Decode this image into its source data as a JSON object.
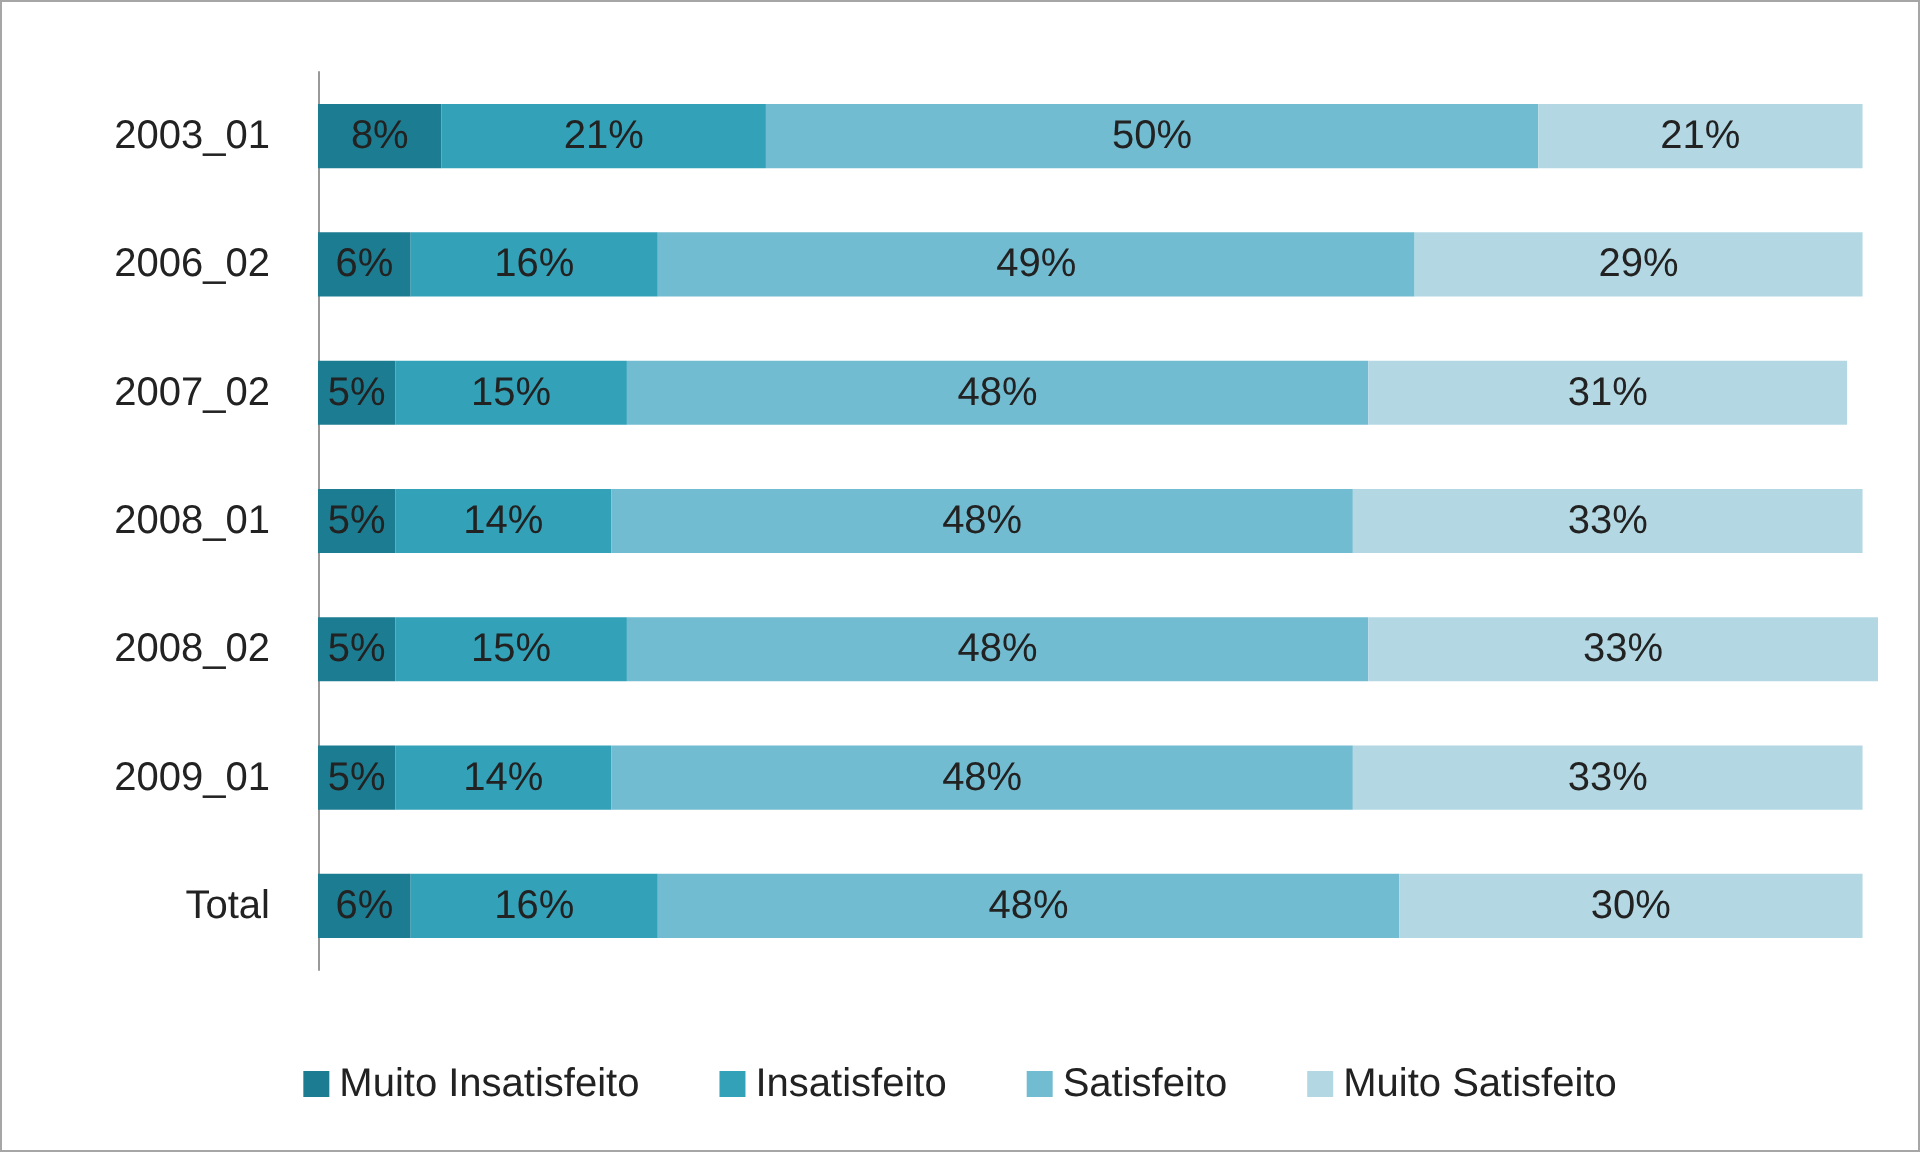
{
  "chart_data": {
    "type": "bar",
    "orientation": "horizontal",
    "stacked": true,
    "legend": "bottom",
    "xlim": [
      0,
      101
    ],
    "categories": [
      "2003_01",
      "2006_02",
      "2007_02",
      "2008_01",
      "2008_02",
      "2009_01",
      "Total"
    ],
    "series": [
      {
        "name": "Muito Insatisfeito",
        "color": "#1c7d92",
        "values": [
          8,
          6,
          5,
          5,
          5,
          5,
          6
        ],
        "value_labels": [
          "8%",
          "6%",
          "5%",
          "5%",
          "5%",
          "5%",
          "6%"
        ]
      },
      {
        "name": "Insatisfeito",
        "color": "#33a2b8",
        "values": [
          21,
          16,
          15,
          14,
          15,
          14,
          16
        ],
        "value_labels": [
          "21%",
          "16%",
          "15%",
          "14%",
          "15%",
          "14%",
          "16%"
        ]
      },
      {
        "name": "Satisfeito",
        "color": "#72bcd1",
        "values": [
          50,
          49,
          48,
          48,
          48,
          48,
          48
        ],
        "value_labels": [
          "50%",
          "49%",
          "48%",
          "48%",
          "48%",
          "48%",
          "48%"
        ]
      },
      {
        "name": "Muito Satisfeito",
        "color": "#b3d8e4",
        "values": [
          21,
          29,
          31,
          33,
          33,
          33,
          30
        ],
        "value_labels": [
          "21%",
          "29%",
          "31%",
          "33%",
          "33%",
          "33%",
          "30%"
        ]
      }
    ]
  }
}
